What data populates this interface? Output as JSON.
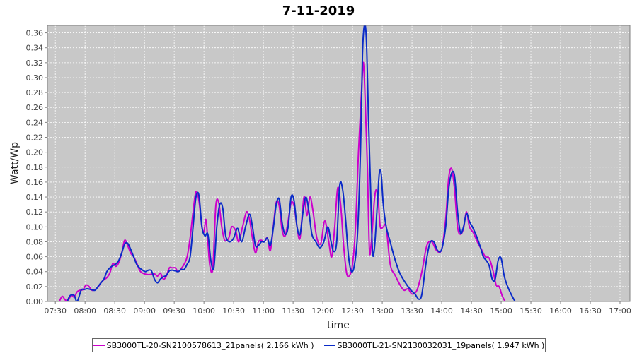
{
  "chart_data": {
    "type": "line",
    "title": "7-11-2019",
    "xlabel": "time",
    "ylabel": "Watt/Wp",
    "xlim": [
      "07:22",
      "17:10"
    ],
    "ylim": [
      0,
      0.37
    ],
    "grid": true,
    "legend_position": "bottom",
    "x_ticks": [
      "07:30",
      "08:00",
      "08:30",
      "09:00",
      "09:30",
      "10:00",
      "10:30",
      "11:00",
      "11:30",
      "12:00",
      "12:30",
      "13:00",
      "13:30",
      "14:00",
      "14:30",
      "15:00",
      "15:30",
      "16:00",
      "16:30",
      "17:00"
    ],
    "y_ticks": [
      "0.00",
      "0.02",
      "0.04",
      "0.06",
      "0.08",
      "0.10",
      "0.12",
      "0.14",
      "0.16",
      "0.18",
      "0.20",
      "0.22",
      "0.24",
      "0.26",
      "0.28",
      "0.30",
      "0.32",
      "0.34",
      "0.36"
    ],
    "colors": {
      "plot_background": "#c8c8c8",
      "grid": "#ffffff"
    },
    "series": [
      {
        "name": "SB3000TL-20-SN2100578613_21panels( 2.166 kWh )",
        "color": "#cc00cc",
        "points": [
          [
            "07:34",
            0.0
          ],
          [
            "07:37",
            0.007
          ],
          [
            "07:40",
            0.002
          ],
          [
            "07:43",
            0.002
          ],
          [
            "07:46",
            0.008
          ],
          [
            "07:49",
            0.006
          ],
          [
            "07:52",
            0.013
          ],
          [
            "07:55",
            0.015
          ],
          [
            "07:58",
            0.016
          ],
          [
            "08:01",
            0.022
          ],
          [
            "08:04",
            0.02
          ],
          [
            "08:07",
            0.015
          ],
          [
            "08:10",
            0.016
          ],
          [
            "08:13",
            0.019
          ],
          [
            "08:16",
            0.025
          ],
          [
            "08:19",
            0.029
          ],
          [
            "08:22",
            0.032
          ],
          [
            "08:25",
            0.038
          ],
          [
            "08:28",
            0.051
          ],
          [
            "08:31",
            0.047
          ],
          [
            "08:34",
            0.052
          ],
          [
            "08:37",
            0.065
          ],
          [
            "08:40",
            0.082
          ],
          [
            "08:43",
            0.075
          ],
          [
            "08:46",
            0.065
          ],
          [
            "08:49",
            0.06
          ],
          [
            "08:52",
            0.052
          ],
          [
            "08:55",
            0.042
          ],
          [
            "08:58",
            0.038
          ],
          [
            "09:04",
            0.036
          ],
          [
            "09:10",
            0.037
          ],
          [
            "09:13",
            0.034
          ],
          [
            "09:16",
            0.038
          ],
          [
            "09:19",
            0.03
          ],
          [
            "09:22",
            0.034
          ],
          [
            "09:25",
            0.045
          ],
          [
            "09:28",
            0.045
          ],
          [
            "09:31",
            0.045
          ],
          [
            "09:34",
            0.04
          ],
          [
            "09:37",
            0.044
          ],
          [
            "09:40",
            0.05
          ],
          [
            "09:43",
            0.06
          ],
          [
            "09:46",
            0.085
          ],
          [
            "09:49",
            0.12
          ],
          [
            "09:52",
            0.147
          ],
          [
            "09:55",
            0.135
          ],
          [
            "09:58",
            0.1
          ],
          [
            "10:00",
            0.093
          ],
          [
            "10:02",
            0.11
          ],
          [
            "10:04",
            0.08
          ],
          [
            "10:06",
            0.048
          ],
          [
            "10:09",
            0.045
          ],
          [
            "10:12",
            0.128
          ],
          [
            "10:15",
            0.132
          ],
          [
            "10:18",
            0.1
          ],
          [
            "10:21",
            0.082
          ],
          [
            "10:25",
            0.085
          ],
          [
            "10:28",
            0.1
          ],
          [
            "10:32",
            0.095
          ],
          [
            "10:35",
            0.08
          ],
          [
            "10:39",
            0.1
          ],
          [
            "10:43",
            0.12
          ],
          [
            "10:46",
            0.11
          ],
          [
            "10:49",
            0.085
          ],
          [
            "10:52",
            0.065
          ],
          [
            "10:55",
            0.08
          ],
          [
            "10:58",
            0.082
          ],
          [
            "11:01",
            0.08
          ],
          [
            "11:04",
            0.085
          ],
          [
            "11:07",
            0.068
          ],
          [
            "11:10",
            0.1
          ],
          [
            "11:13",
            0.133
          ],
          [
            "11:16",
            0.128
          ],
          [
            "11:19",
            0.095
          ],
          [
            "11:22",
            0.088
          ],
          [
            "11:25",
            0.108
          ],
          [
            "11:28",
            0.132
          ],
          [
            "11:31",
            0.128
          ],
          [
            "11:34",
            0.1
          ],
          [
            "11:37",
            0.085
          ],
          [
            "11:41",
            0.14
          ],
          [
            "11:44",
            0.115
          ],
          [
            "11:47",
            0.14
          ],
          [
            "11:50",
            0.122
          ],
          [
            "11:54",
            0.085
          ],
          [
            "11:58",
            0.078
          ],
          [
            "12:02",
            0.108
          ],
          [
            "12:06",
            0.08
          ],
          [
            "12:09",
            0.06
          ],
          [
            "12:12",
            0.1
          ],
          [
            "12:15",
            0.152
          ],
          [
            "12:18",
            0.13
          ],
          [
            "12:21",
            0.075
          ],
          [
            "12:24",
            0.038
          ],
          [
            "12:27",
            0.035
          ],
          [
            "12:30",
            0.05
          ],
          [
            "12:33",
            0.1
          ],
          [
            "12:36",
            0.2
          ],
          [
            "12:39",
            0.28
          ],
          [
            "12:41",
            0.32
          ],
          [
            "12:43",
            0.26
          ],
          [
            "12:45",
            0.18
          ],
          [
            "12:47",
            0.07
          ],
          [
            "12:49",
            0.08
          ],
          [
            "12:52",
            0.135
          ],
          [
            "12:54",
            0.15
          ],
          [
            "12:56",
            0.135
          ],
          [
            "12:58",
            0.1
          ],
          [
            "13:01",
            0.1
          ],
          [
            "13:04",
            0.1
          ],
          [
            "13:08",
            0.05
          ],
          [
            "13:13",
            0.035
          ],
          [
            "13:18",
            0.022
          ],
          [
            "13:22",
            0.015
          ],
          [
            "13:26",
            0.017
          ],
          [
            "13:30",
            0.01
          ],
          [
            "13:35",
            0.015
          ],
          [
            "13:40",
            0.04
          ],
          [
            "13:45",
            0.075
          ],
          [
            "13:50",
            0.08
          ],
          [
            "13:55",
            0.068
          ],
          [
            "14:00",
            0.07
          ],
          [
            "14:04",
            0.11
          ],
          [
            "14:07",
            0.165
          ],
          [
            "14:10",
            0.178
          ],
          [
            "14:13",
            0.15
          ],
          [
            "14:16",
            0.1
          ],
          [
            "14:19",
            0.09
          ],
          [
            "14:22",
            0.098
          ],
          [
            "14:25",
            0.12
          ],
          [
            "14:28",
            0.1
          ],
          [
            "14:32",
            0.092
          ],
          [
            "14:36",
            0.08
          ],
          [
            "14:40",
            0.07
          ],
          [
            "14:44",
            0.06
          ],
          [
            "14:48",
            0.058
          ],
          [
            "14:52",
            0.04
          ],
          [
            "14:55",
            0.022
          ],
          [
            "14:58",
            0.02
          ],
          [
            "15:01",
            0.008
          ],
          [
            "15:04",
            0.0
          ]
        ]
      },
      {
        "name": "SB3000TL-21-SN2130032031_19panels( 1.947 kWh )",
        "color": "#0a2bc8",
        "points": [
          [
            "07:42",
            0.0
          ],
          [
            "07:45",
            0.008
          ],
          [
            "07:49",
            0.008
          ],
          [
            "07:52",
            0.0
          ],
          [
            "07:56",
            0.015
          ],
          [
            "07:59",
            0.016
          ],
          [
            "08:02",
            0.017
          ],
          [
            "08:06",
            0.016
          ],
          [
            "08:10",
            0.015
          ],
          [
            "08:13",
            0.02
          ],
          [
            "08:16",
            0.025
          ],
          [
            "08:19",
            0.03
          ],
          [
            "08:22",
            0.04
          ],
          [
            "08:25",
            0.045
          ],
          [
            "08:28",
            0.048
          ],
          [
            "08:31",
            0.05
          ],
          [
            "08:34",
            0.055
          ],
          [
            "08:37",
            0.065
          ],
          [
            "08:40",
            0.077
          ],
          [
            "08:43",
            0.078
          ],
          [
            "08:46",
            0.07
          ],
          [
            "08:49",
            0.06
          ],
          [
            "08:52",
            0.05
          ],
          [
            "08:55",
            0.045
          ],
          [
            "08:58",
            0.042
          ],
          [
            "09:01",
            0.04
          ],
          [
            "09:04",
            0.042
          ],
          [
            "09:07",
            0.041
          ],
          [
            "09:10",
            0.03
          ],
          [
            "09:13",
            0.025
          ],
          [
            "09:16",
            0.03
          ],
          [
            "09:19",
            0.033
          ],
          [
            "09:22",
            0.035
          ],
          [
            "09:25",
            0.041
          ],
          [
            "09:28",
            0.042
          ],
          [
            "09:31",
            0.041
          ],
          [
            "09:34",
            0.04
          ],
          [
            "09:37",
            0.043
          ],
          [
            "09:40",
            0.043
          ],
          [
            "09:43",
            0.05
          ],
          [
            "09:46",
            0.06
          ],
          [
            "09:49",
            0.1
          ],
          [
            "09:52",
            0.14
          ],
          [
            "09:55",
            0.142
          ],
          [
            "09:58",
            0.1
          ],
          [
            "10:01",
            0.088
          ],
          [
            "10:04",
            0.09
          ],
          [
            "10:07",
            0.055
          ],
          [
            "10:10",
            0.045
          ],
          [
            "10:13",
            0.1
          ],
          [
            "10:16",
            0.13
          ],
          [
            "10:19",
            0.125
          ],
          [
            "10:22",
            0.088
          ],
          [
            "10:26",
            0.08
          ],
          [
            "10:30",
            0.085
          ],
          [
            "10:34",
            0.098
          ],
          [
            "10:38",
            0.08
          ],
          [
            "10:42",
            0.1
          ],
          [
            "10:46",
            0.117
          ],
          [
            "10:49",
            0.1
          ],
          [
            "10:52",
            0.075
          ],
          [
            "10:55",
            0.075
          ],
          [
            "10:58",
            0.08
          ],
          [
            "11:01",
            0.08
          ],
          [
            "11:04",
            0.085
          ],
          [
            "11:07",
            0.075
          ],
          [
            "11:10",
            0.098
          ],
          [
            "11:13",
            0.13
          ],
          [
            "11:16",
            0.137
          ],
          [
            "11:19",
            0.105
          ],
          [
            "11:22",
            0.09
          ],
          [
            "11:25",
            0.1
          ],
          [
            "11:28",
            0.14
          ],
          [
            "11:31",
            0.135
          ],
          [
            "11:34",
            0.1
          ],
          [
            "11:37",
            0.09
          ],
          [
            "11:40",
            0.12
          ],
          [
            "11:43",
            0.14
          ],
          [
            "11:46",
            0.12
          ],
          [
            "11:49",
            0.09
          ],
          [
            "11:53",
            0.08
          ],
          [
            "11:57",
            0.072
          ],
          [
            "12:01",
            0.08
          ],
          [
            "12:05",
            0.1
          ],
          [
            "12:08",
            0.082
          ],
          [
            "12:11",
            0.067
          ],
          [
            "12:14",
            0.08
          ],
          [
            "12:17",
            0.155
          ],
          [
            "12:20",
            0.15
          ],
          [
            "12:23",
            0.11
          ],
          [
            "12:26",
            0.06
          ],
          [
            "12:29",
            0.04
          ],
          [
            "12:32",
            0.05
          ],
          [
            "12:35",
            0.09
          ],
          [
            "12:38",
            0.2
          ],
          [
            "12:40",
            0.33
          ],
          [
            "12:42",
            0.37
          ],
          [
            "12:44",
            0.35
          ],
          [
            "12:46",
            0.25
          ],
          [
            "12:48",
            0.16
          ],
          [
            "12:50",
            0.07
          ],
          [
            "12:52",
            0.07
          ],
          [
            "12:55",
            0.13
          ],
          [
            "12:57",
            0.172
          ],
          [
            "12:59",
            0.17
          ],
          [
            "13:01",
            0.13
          ],
          [
            "13:04",
            0.1
          ],
          [
            "13:08",
            0.08
          ],
          [
            "13:12",
            0.06
          ],
          [
            "13:17",
            0.04
          ],
          [
            "13:21",
            0.03
          ],
          [
            "13:25",
            0.022
          ],
          [
            "13:29",
            0.015
          ],
          [
            "13:33",
            0.01
          ],
          [
            "13:37",
            0.003
          ],
          [
            "13:40",
            0.01
          ],
          [
            "13:44",
            0.05
          ],
          [
            "13:48",
            0.078
          ],
          [
            "13:52",
            0.08
          ],
          [
            "13:56",
            0.068
          ],
          [
            "14:00",
            0.07
          ],
          [
            "14:04",
            0.1
          ],
          [
            "14:07",
            0.15
          ],
          [
            "14:10",
            0.172
          ],
          [
            "14:13",
            0.168
          ],
          [
            "14:16",
            0.12
          ],
          [
            "14:19",
            0.092
          ],
          [
            "14:22",
            0.1
          ],
          [
            "14:25",
            0.118
          ],
          [
            "14:28",
            0.107
          ],
          [
            "14:31",
            0.1
          ],
          [
            "14:35",
            0.088
          ],
          [
            "14:39",
            0.073
          ],
          [
            "14:42",
            0.06
          ],
          [
            "14:45",
            0.055
          ],
          [
            "14:48",
            0.048
          ],
          [
            "14:51",
            0.03
          ],
          [
            "14:54",
            0.03
          ],
          [
            "14:57",
            0.055
          ],
          [
            "15:00",
            0.058
          ],
          [
            "15:03",
            0.035
          ],
          [
            "15:06",
            0.022
          ],
          [
            "15:10",
            0.01
          ],
          [
            "15:14",
            0.0
          ]
        ]
      }
    ]
  }
}
